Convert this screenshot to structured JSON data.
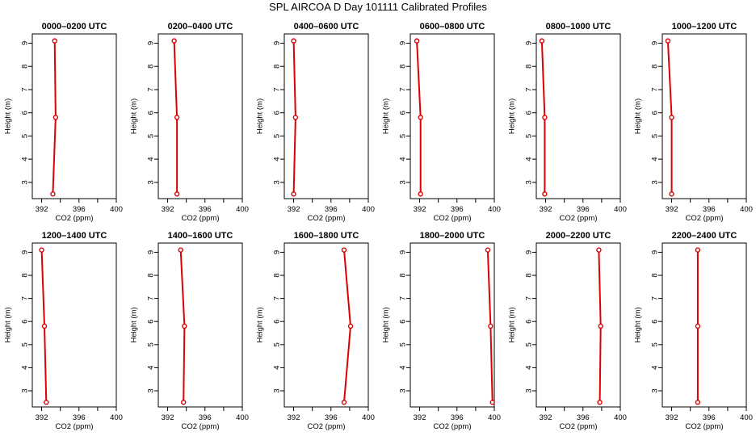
{
  "figure": {
    "title": "SPL AIRCOA D  Day 101111  Calibrated Profiles"
  },
  "colors": {
    "series": "#dd0000",
    "axis": "#000000",
    "background": "#ffffff"
  },
  "chart_data": [
    {
      "type": "line",
      "title": "0000–0200 UTC",
      "xlabel": "CO2 (ppm)",
      "ylabel": "Height (m)",
      "xlim": [
        391,
        400
      ],
      "ylim": [
        2.3,
        9.4
      ],
      "xticks": [
        392,
        396,
        400
      ],
      "xminor": [
        394,
        398
      ],
      "yticks": [
        3,
        4,
        5,
        6,
        7,
        8,
        9
      ],
      "series": [
        {
          "name": "profile",
          "x": [
            393.2,
            393.5,
            393.4
          ],
          "y": [
            2.5,
            5.8,
            9.1
          ]
        }
      ]
    },
    {
      "type": "line",
      "title": "0200–0400 UTC",
      "xlabel": "CO2 (ppm)",
      "ylabel": "Height (m)",
      "xlim": [
        391,
        400
      ],
      "ylim": [
        2.3,
        9.4
      ],
      "xticks": [
        392,
        396,
        400
      ],
      "xminor": [
        394,
        398
      ],
      "yticks": [
        3,
        4,
        5,
        6,
        7,
        8,
        9
      ],
      "series": [
        {
          "name": "profile",
          "x": [
            393.0,
            393.0,
            392.7
          ],
          "y": [
            2.5,
            5.8,
            9.1
          ]
        }
      ]
    },
    {
      "type": "line",
      "title": "0400–0600 UTC",
      "xlabel": "CO2 (ppm)",
      "ylabel": "Height (m)",
      "xlim": [
        391,
        400
      ],
      "ylim": [
        2.3,
        9.4
      ],
      "xticks": [
        392,
        396,
        400
      ],
      "xminor": [
        394,
        398
      ],
      "yticks": [
        3,
        4,
        5,
        6,
        7,
        8,
        9
      ],
      "series": [
        {
          "name": "profile",
          "x": [
            392.0,
            392.2,
            392.0
          ],
          "y": [
            2.5,
            5.8,
            9.1
          ]
        }
      ]
    },
    {
      "type": "line",
      "title": "0600–0800 UTC",
      "xlabel": "CO2 (ppm)",
      "ylabel": "Height (m)",
      "xlim": [
        391,
        400
      ],
      "ylim": [
        2.3,
        9.4
      ],
      "xticks": [
        392,
        396,
        400
      ],
      "xminor": [
        394,
        398
      ],
      "yticks": [
        3,
        4,
        5,
        6,
        7,
        8,
        9
      ],
      "series": [
        {
          "name": "profile",
          "x": [
            392.1,
            392.1,
            391.7
          ],
          "y": [
            2.5,
            5.8,
            9.1
          ]
        }
      ]
    },
    {
      "type": "line",
      "title": "0800–1000 UTC",
      "xlabel": "CO2 (ppm)",
      "ylabel": "Height (m)",
      "xlim": [
        391,
        400
      ],
      "ylim": [
        2.3,
        9.4
      ],
      "xticks": [
        392,
        396,
        400
      ],
      "xminor": [
        394,
        398
      ],
      "yticks": [
        3,
        4,
        5,
        6,
        7,
        8,
        9
      ],
      "series": [
        {
          "name": "profile",
          "x": [
            391.9,
            391.9,
            391.6
          ],
          "y": [
            2.5,
            5.8,
            9.1
          ]
        }
      ]
    },
    {
      "type": "line",
      "title": "1000–1200 UTC",
      "xlabel": "CO2 (ppm)",
      "ylabel": "Height (m)",
      "xlim": [
        391,
        400
      ],
      "ylim": [
        2.3,
        9.4
      ],
      "xticks": [
        392,
        396,
        400
      ],
      "xminor": [
        394,
        398
      ],
      "yticks": [
        3,
        4,
        5,
        6,
        7,
        8,
        9
      ],
      "series": [
        {
          "name": "profile",
          "x": [
            392.0,
            392.0,
            391.6
          ],
          "y": [
            2.5,
            5.8,
            9.1
          ]
        }
      ]
    },
    {
      "type": "line",
      "title": "1200–1400 UTC",
      "xlabel": "CO2 (ppm)",
      "ylabel": "Height (m)",
      "xlim": [
        391,
        400
      ],
      "ylim": [
        2.3,
        9.4
      ],
      "xticks": [
        392,
        396,
        400
      ],
      "xminor": [
        394,
        398
      ],
      "yticks": [
        3,
        4,
        5,
        6,
        7,
        8,
        9
      ],
      "series": [
        {
          "name": "profile",
          "x": [
            392.5,
            392.3,
            392.0
          ],
          "y": [
            2.5,
            5.8,
            9.1
          ]
        }
      ]
    },
    {
      "type": "line",
      "title": "1400–1600 UTC",
      "xlabel": "CO2 (ppm)",
      "ylabel": "Height (m)",
      "xlim": [
        391,
        400
      ],
      "ylim": [
        2.3,
        9.4
      ],
      "xticks": [
        392,
        396,
        400
      ],
      "xminor": [
        394,
        398
      ],
      "yticks": [
        3,
        4,
        5,
        6,
        7,
        8,
        9
      ],
      "series": [
        {
          "name": "profile",
          "x": [
            393.7,
            393.8,
            393.4
          ],
          "y": [
            2.5,
            5.8,
            9.1
          ]
        }
      ]
    },
    {
      "type": "line",
      "title": "1600–1800 UTC",
      "xlabel": "CO2 (ppm)",
      "ylabel": "Height (m)",
      "xlim": [
        391,
        400
      ],
      "ylim": [
        2.3,
        9.4
      ],
      "xticks": [
        392,
        396,
        400
      ],
      "xminor": [
        394,
        398
      ],
      "yticks": [
        3,
        4,
        5,
        6,
        7,
        8,
        9
      ],
      "series": [
        {
          "name": "profile",
          "x": [
            397.4,
            398.1,
            397.4
          ],
          "y": [
            2.5,
            5.8,
            9.1
          ]
        }
      ]
    },
    {
      "type": "line",
      "title": "1800–2000 UTC",
      "xlabel": "CO2 (ppm)",
      "ylabel": "Height (m)",
      "xlim": [
        391,
        400
      ],
      "ylim": [
        2.3,
        9.4
      ],
      "xticks": [
        392,
        396,
        400
      ],
      "xminor": [
        394,
        398
      ],
      "yticks": [
        3,
        4,
        5,
        6,
        7,
        8,
        9
      ],
      "series": [
        {
          "name": "profile",
          "x": [
            399.8,
            399.6,
            399.3
          ],
          "y": [
            2.5,
            5.8,
            9.1
          ]
        }
      ]
    },
    {
      "type": "line",
      "title": "2000–2200 UTC",
      "xlabel": "CO2 (ppm)",
      "ylabel": "Height (m)",
      "xlim": [
        391,
        400
      ],
      "ylim": [
        2.3,
        9.4
      ],
      "xticks": [
        392,
        396,
        400
      ],
      "xminor": [
        394,
        398
      ],
      "yticks": [
        3,
        4,
        5,
        6,
        7,
        8,
        9
      ],
      "series": [
        {
          "name": "profile",
          "x": [
            397.8,
            397.9,
            397.7
          ],
          "y": [
            2.5,
            5.8,
            9.1
          ]
        }
      ]
    },
    {
      "type": "line",
      "title": "2200–2400 UTC",
      "xlabel": "CO2 (ppm)",
      "ylabel": "Height (m)",
      "xlim": [
        391,
        400
      ],
      "ylim": [
        2.3,
        9.4
      ],
      "xticks": [
        392,
        396,
        400
      ],
      "xminor": [
        394,
        398
      ],
      "yticks": [
        3,
        4,
        5,
        6,
        7,
        8,
        9
      ],
      "series": [
        {
          "name": "profile",
          "x": [
            394.8,
            394.8,
            394.8
          ],
          "y": [
            2.5,
            5.8,
            9.1
          ]
        }
      ]
    }
  ]
}
